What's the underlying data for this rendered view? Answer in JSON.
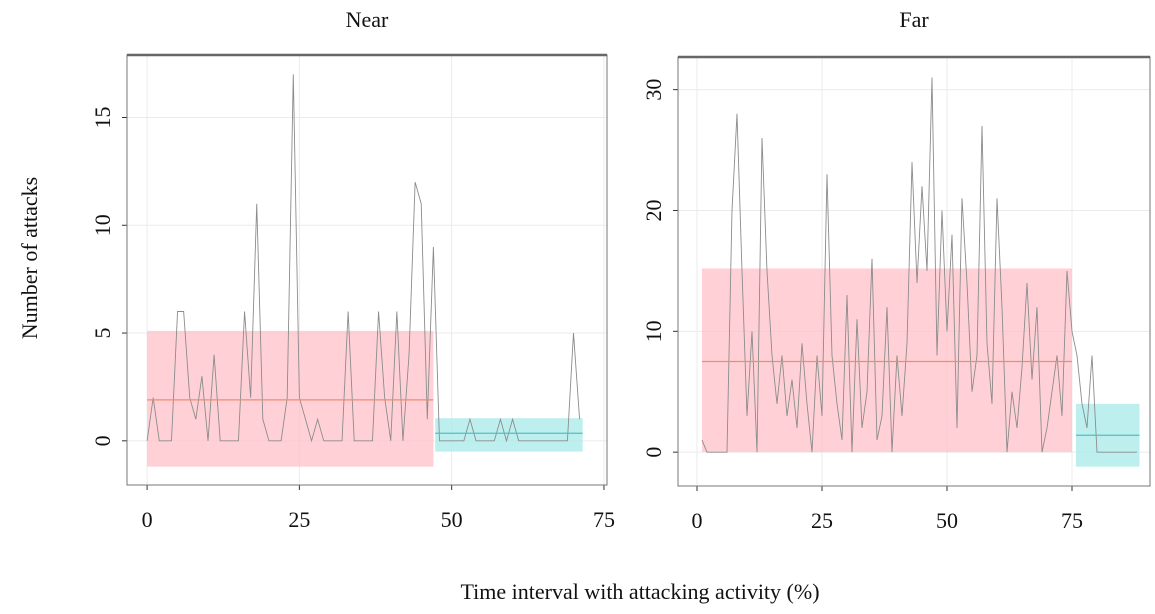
{
  "ylabel": "Number of attacks",
  "xlabel": "Time interval with attacking activity (%)",
  "chart_data": [
    {
      "type": "line",
      "title": "Near",
      "xlim": [
        -3.3,
        75.5
      ],
      "ylim": [
        -2.05,
        17.9
      ],
      "xticks": [
        0,
        25,
        50,
        75
      ],
      "yticks": [
        0,
        5,
        10,
        15
      ],
      "grid": true,
      "series": [
        {
          "color": "#8c8c8c",
          "x": [
            0,
            1,
            2,
            3,
            4,
            5,
            6,
            7,
            8,
            9,
            10,
            11,
            12,
            13,
            14,
            15,
            16,
            17,
            18,
            19,
            20,
            21,
            22,
            23,
            24,
            25,
            26,
            27,
            28,
            29,
            30,
            31,
            32,
            33,
            34,
            35,
            36,
            37,
            38,
            39,
            40,
            41,
            42,
            43,
            44,
            45,
            46,
            47,
            48,
            49,
            50,
            51,
            52,
            53,
            54,
            55,
            56,
            57,
            58,
            59,
            60,
            61,
            62,
            63,
            64,
            65,
            66,
            67,
            68,
            69,
            70,
            71
          ],
          "values": [
            0,
            2,
            0,
            0,
            0,
            6,
            6,
            2,
            1,
            3,
            0,
            4,
            0,
            0,
            0,
            0,
            6,
            2,
            11,
            1,
            0,
            0,
            0,
            2,
            17,
            2,
            1,
            0,
            1,
            0,
            0,
            0,
            0,
            6,
            0,
            0,
            0,
            0,
            6,
            2,
            0,
            6,
            0,
            4,
            12,
            11,
            1,
            9,
            0,
            0,
            0,
            0,
            0,
            1,
            0,
            0,
            0,
            0,
            1,
            0,
            1,
            0,
            0,
            0,
            0,
            0,
            0,
            0,
            0,
            0,
            5,
            1
          ]
        }
      ],
      "bands": [
        {
          "x": [
            0,
            47
          ],
          "y": [
            -1.2,
            5.1
          ],
          "mean": 1.9,
          "color": "#ffc2c8",
          "line_color": "#f08a72"
        },
        {
          "x": [
            47.3,
            71.5
          ],
          "y": [
            -0.5,
            1.05
          ],
          "mean": 0.35,
          "color": "#a8eaea",
          "line_color": "#4cc2c2"
        }
      ]
    },
    {
      "type": "line",
      "title": "Far",
      "xlim": [
        -3.8,
        90.6
      ],
      "ylim": [
        -2.8,
        32.7
      ],
      "xticks": [
        0,
        25,
        50,
        75
      ],
      "yticks": [
        0,
        10,
        20,
        30
      ],
      "grid": true,
      "series": [
        {
          "color": "#8c8c8c",
          "x": [
            1,
            2,
            3,
            4,
            5,
            6,
            7,
            8,
            9,
            10,
            11,
            12,
            13,
            14,
            15,
            16,
            17,
            18,
            19,
            20,
            21,
            22,
            23,
            24,
            25,
            26,
            27,
            28,
            29,
            30,
            31,
            32,
            33,
            34,
            35,
            36,
            37,
            38,
            39,
            40,
            41,
            42,
            43,
            44,
            45,
            46,
            47,
            48,
            49,
            50,
            51,
            52,
            53,
            54,
            55,
            56,
            57,
            58,
            59,
            60,
            61,
            62,
            63,
            64,
            65,
            66,
            67,
            68,
            69,
            70,
            71,
            72,
            73,
            74,
            75,
            76,
            77,
            78,
            79,
            80,
            81,
            82,
            83,
            84,
            85,
            86,
            87,
            88
          ],
          "values": [
            1,
            0,
            0,
            0,
            0,
            0,
            20,
            28,
            15,
            3,
            10,
            0,
            26,
            15,
            8,
            4,
            8,
            3,
            6,
            2,
            9,
            4,
            0,
            8,
            3,
            23,
            8,
            4,
            1,
            13,
            0,
            11,
            2,
            5,
            16,
            1,
            3,
            12,
            0,
            8,
            3,
            9,
            24,
            14,
            22,
            15,
            31,
            8,
            20,
            10,
            18,
            2,
            21,
            14,
            5,
            8,
            27,
            9,
            4,
            21,
            12,
            0,
            5,
            2,
            7,
            14,
            6,
            12,
            0,
            2,
            5,
            8,
            3,
            15,
            10,
            8,
            4,
            2,
            8,
            0,
            0,
            0,
            0,
            0,
            0,
            0,
            0,
            0
          ]
        }
      ],
      "bands": [
        {
          "x": [
            1,
            75
          ],
          "y": [
            0,
            15.2
          ],
          "mean": 7.5,
          "color": "#ffc2c8",
          "line_color": "#f08a72"
        },
        {
          "x": [
            75.8,
            88.5
          ],
          "y": [
            -1.2,
            4
          ],
          "mean": 1.4,
          "color": "#a8eaea",
          "line_color": "#4cc2c2"
        }
      ]
    }
  ]
}
